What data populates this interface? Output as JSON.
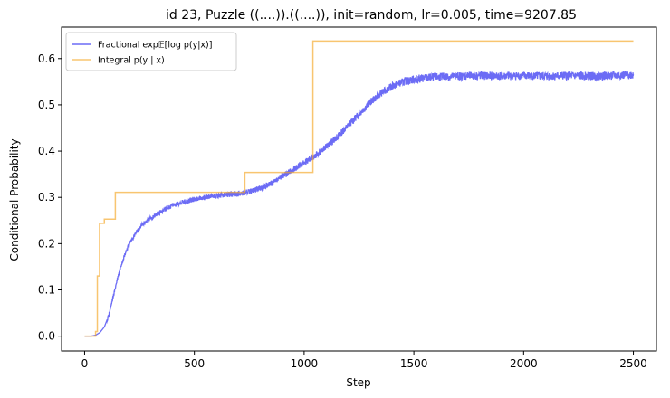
{
  "chart_data": {
    "type": "line",
    "title": "id 23, Puzzle ((....)).((....)), init=random, lr=0.005, time=9207.85",
    "xlabel": "Step",
    "ylabel": "Conditional Probability",
    "xlim": [
      -105,
      2605
    ],
    "ylim": [
      -0.032,
      0.668
    ],
    "xticks": [
      0,
      500,
      1000,
      1500,
      2000,
      2500
    ],
    "xtick_labels": [
      "0",
      "500",
      "1000",
      "1500",
      "2000",
      "2500"
    ],
    "yticks": [
      0.0,
      0.1,
      0.2,
      0.3,
      0.4,
      0.5,
      0.6
    ],
    "ytick_labels": [
      "0.0",
      "0.1",
      "0.2",
      "0.3",
      "0.4",
      "0.5",
      "0.6"
    ],
    "grid": false,
    "legend_position": "top-left",
    "series": [
      {
        "name": "Fractional exp𝔼[log p(y|x)]",
        "color": "#6464f4",
        "style": "noisy-line",
        "x": [
          0,
          30,
          50,
          70,
          90,
          110,
          130,
          150,
          170,
          190,
          210,
          230,
          260,
          300,
          350,
          400,
          450,
          500,
          550,
          600,
          650,
          700,
          750,
          800,
          850,
          900,
          950,
          1000,
          1050,
          1100,
          1150,
          1200,
          1250,
          1300,
          1350,
          1400,
          1450,
          1500,
          1550,
          1600,
          1700,
          1800,
          1900,
          2000,
          2100,
          2200,
          2300,
          2400,
          2500
        ],
        "values": [
          0.0,
          0.0,
          0.002,
          0.008,
          0.02,
          0.045,
          0.085,
          0.125,
          0.16,
          0.185,
          0.205,
          0.22,
          0.24,
          0.255,
          0.27,
          0.283,
          0.29,
          0.296,
          0.3,
          0.303,
          0.306,
          0.308,
          0.312,
          0.32,
          0.33,
          0.345,
          0.36,
          0.375,
          0.39,
          0.41,
          0.43,
          0.455,
          0.48,
          0.505,
          0.525,
          0.54,
          0.55,
          0.555,
          0.558,
          0.56,
          0.562,
          0.563,
          0.562,
          0.563,
          0.562,
          0.563,
          0.562,
          0.563,
          0.565
        ]
      },
      {
        "name": "Integral p(y | x)",
        "color": "#f5a623",
        "style": "step",
        "x": [
          0,
          50,
          58,
          62,
          68,
          90,
          140,
          730,
          1040,
          2500
        ],
        "values": [
          0.0,
          0.01,
          0.13,
          0.13,
          0.244,
          0.253,
          0.311,
          0.354,
          0.638,
          0.638
        ]
      }
    ]
  }
}
